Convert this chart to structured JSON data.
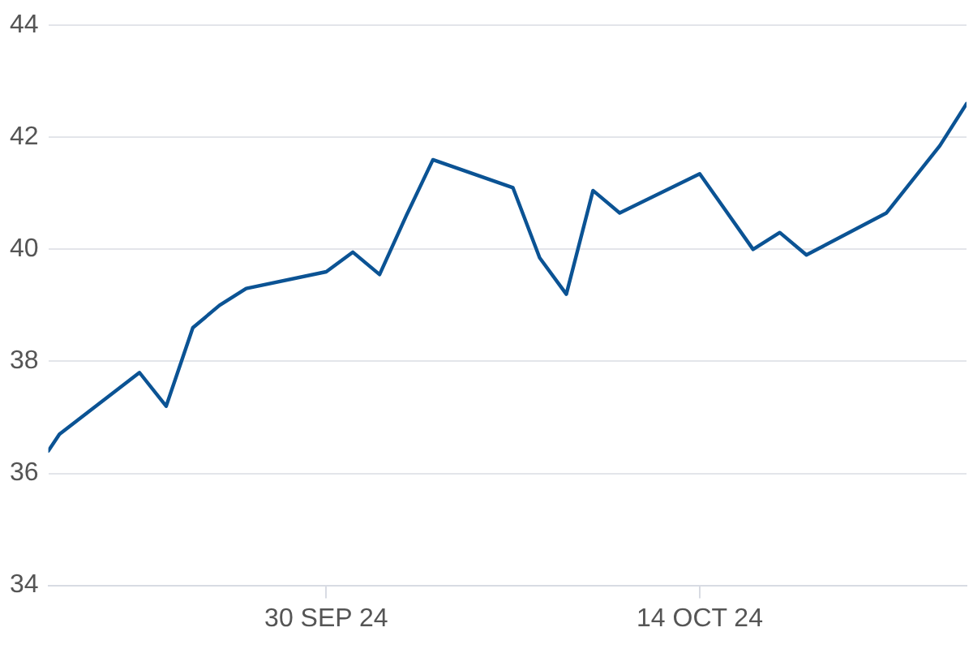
{
  "chart_data": {
    "type": "line",
    "x": [
      "2024-09-19T14:00",
      "2024-09-20",
      "2024-09-23",
      "2024-09-24",
      "2024-09-25",
      "2024-09-26",
      "2024-09-27",
      "2024-09-30",
      "2024-10-01",
      "2024-10-02",
      "2024-10-03",
      "2024-10-04",
      "2024-10-07",
      "2024-10-08",
      "2024-10-09",
      "2024-10-10",
      "2024-10-11",
      "2024-10-14",
      "2024-10-16",
      "2024-10-17",
      "2024-10-18",
      "2024-10-21",
      "2024-10-23",
      "2024-10-24"
    ],
    "series": [
      {
        "color": "#0b5394",
        "values": [
          36.4,
          36.7,
          37.8,
          37.2,
          38.6,
          39.0,
          39.3,
          39.6,
          39.95,
          39.55,
          40.6,
          41.6,
          41.1,
          39.85,
          39.2,
          41.05,
          40.65,
          41.35,
          40.0,
          40.3,
          39.9,
          40.65,
          41.85,
          42.6
        ]
      }
    ],
    "xlim": [
      "2024-09-19T14:00",
      "2024-10-24"
    ],
    "xticks": [
      {
        "value": "2024-09-30",
        "label": "30 SEP 24"
      },
      {
        "value": "2024-10-14",
        "label": "14 OCT 24"
      }
    ],
    "ylim": [
      34,
      44
    ],
    "yticks": [
      34,
      36,
      38,
      40,
      42,
      44
    ],
    "grid": "y",
    "legend": false,
    "marker": "none",
    "line_style": "solid"
  }
}
